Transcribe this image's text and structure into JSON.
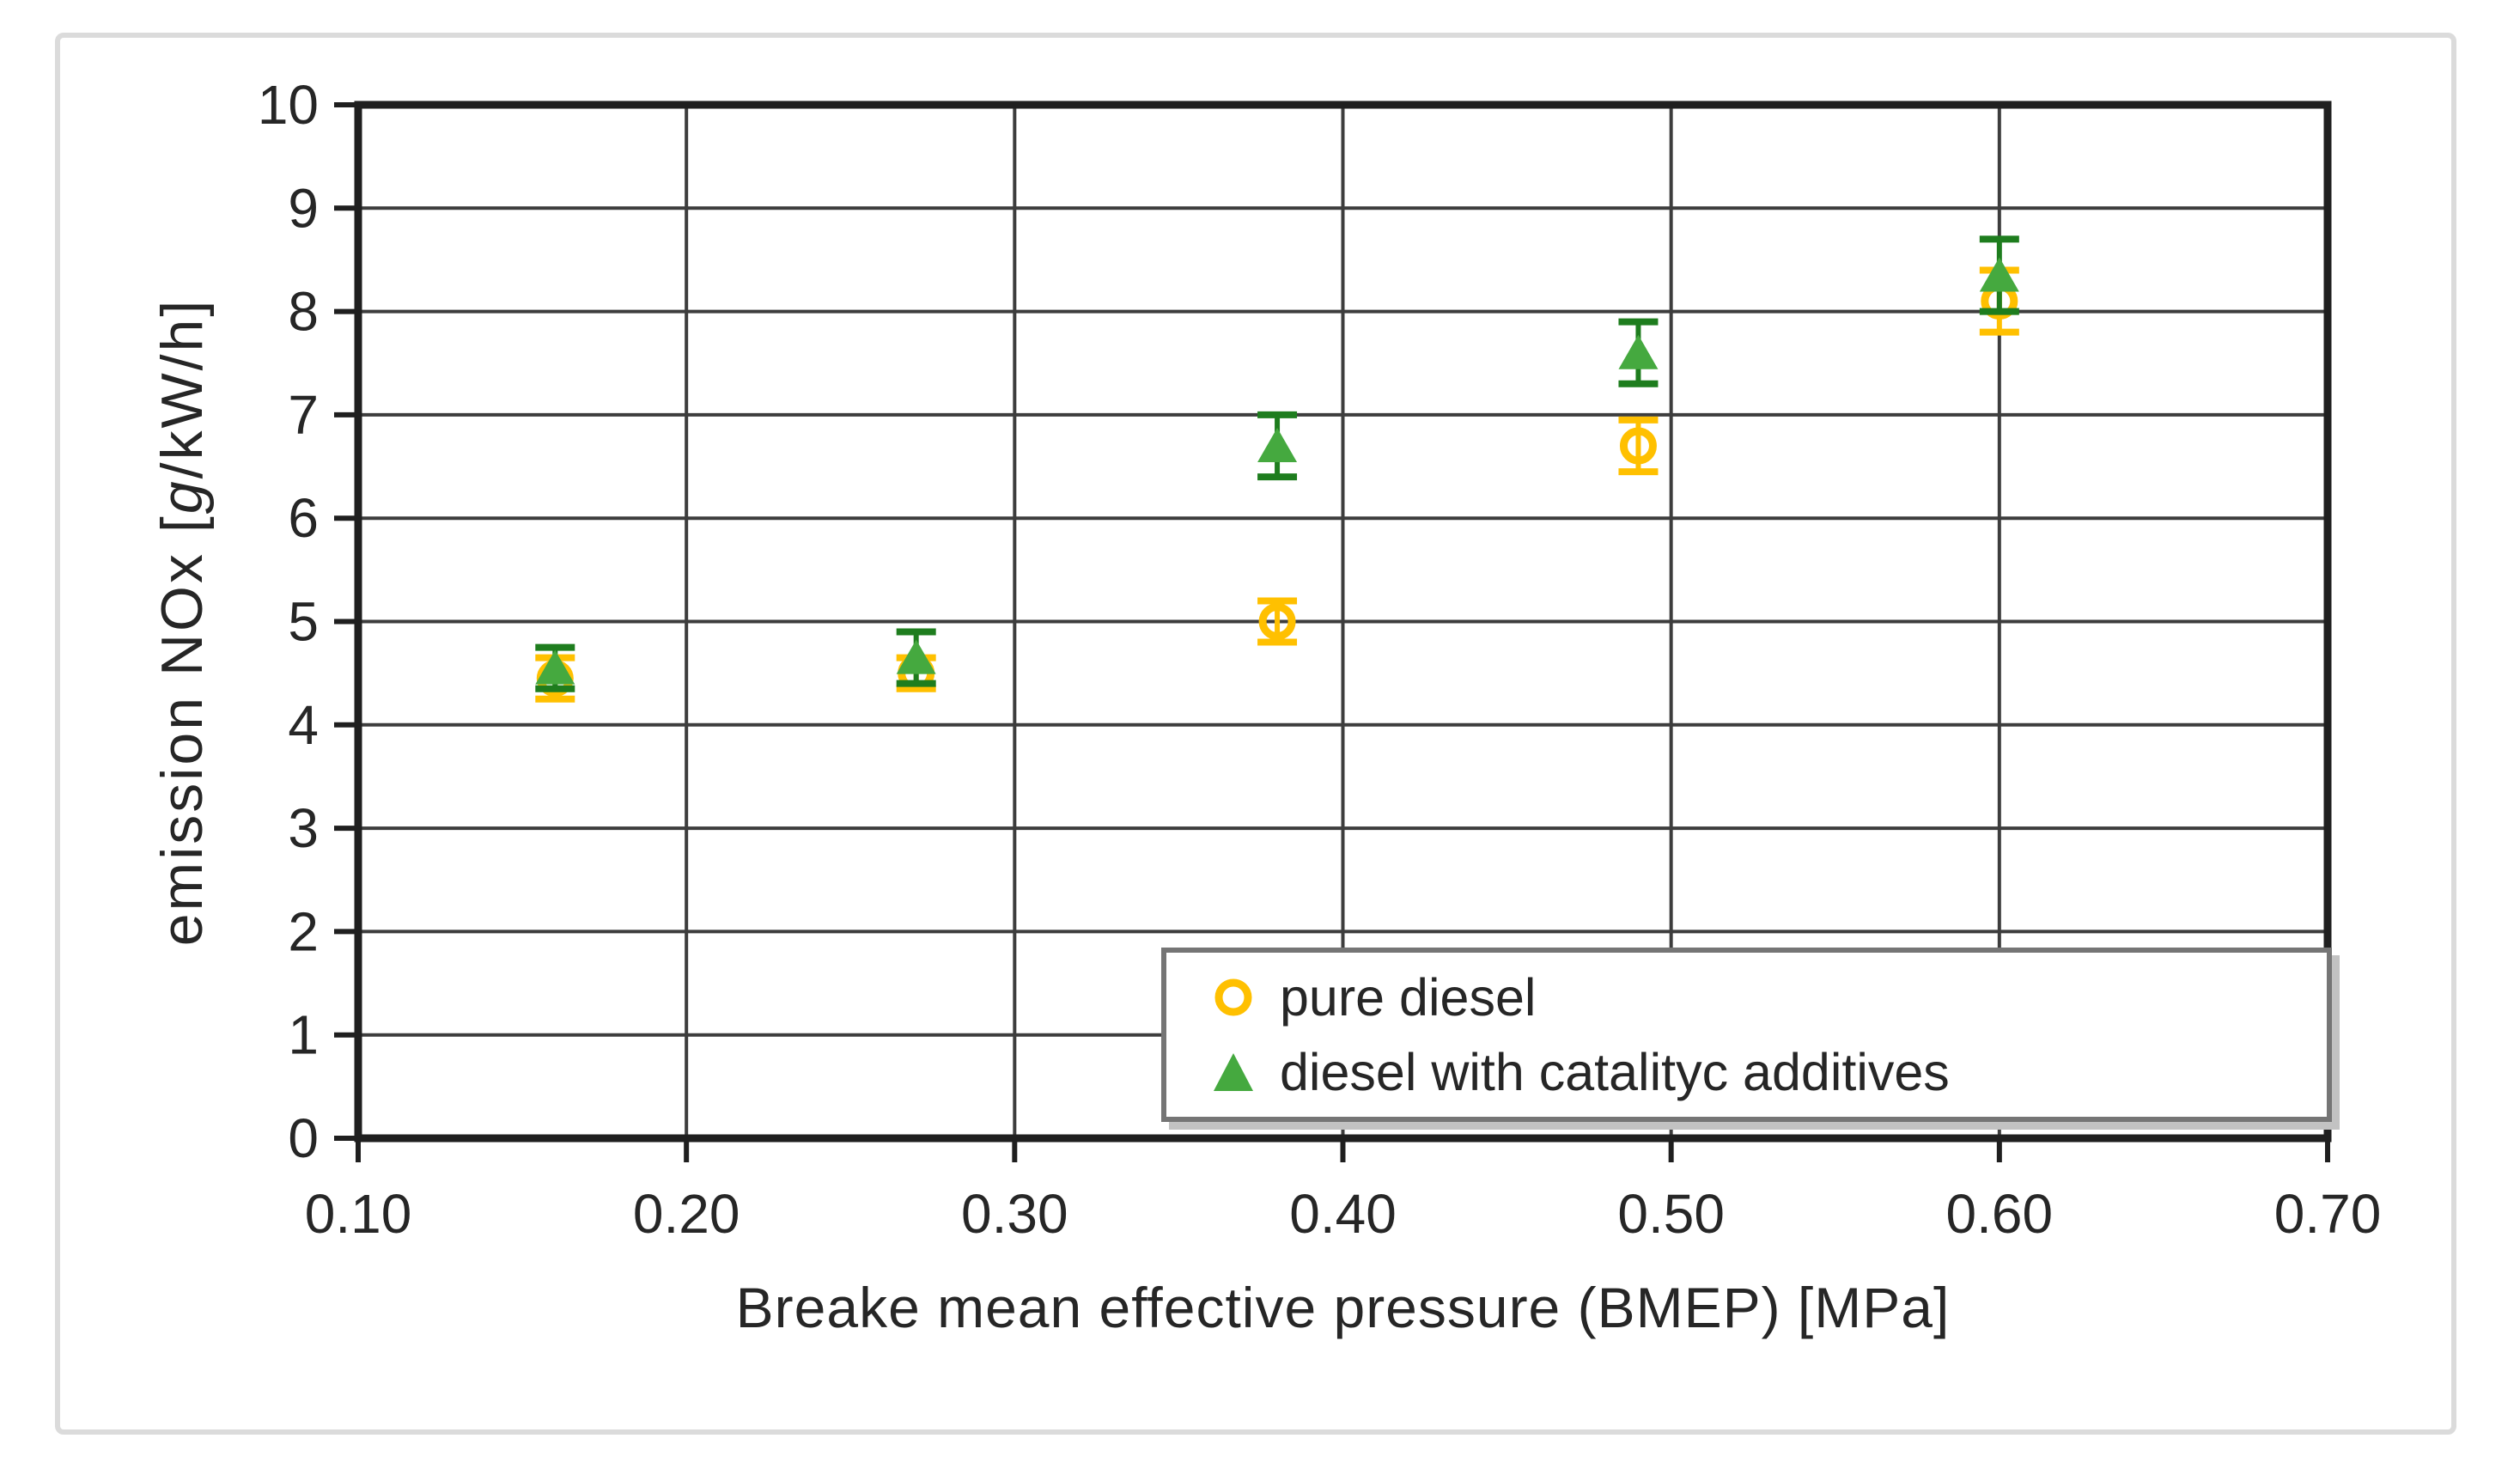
{
  "chart_data": {
    "type": "scatter",
    "title": "",
    "xlabel": "Breake mean effective pressure (BMEP) [MPa]",
    "ylabel": "emission NOx [g/kW/h]",
    "ylabel_parts": {
      "prefix": "emission NOx [",
      "italic": "g",
      "suffix": "/kW/h]"
    },
    "xlim": [
      0.1,
      0.7
    ],
    "ylim": [
      0,
      10
    ],
    "x_ticks": [
      0.1,
      0.2,
      0.3,
      0.4,
      0.5,
      0.6,
      0.7
    ],
    "x_tick_labels": [
      "0.10",
      "0.20",
      "0.30",
      "0.40",
      "0.50",
      "0.60",
      "0.70"
    ],
    "y_ticks": [
      0,
      1,
      2,
      3,
      4,
      5,
      6,
      7,
      8,
      9,
      10
    ],
    "y_tick_labels": [
      "0",
      "1",
      "2",
      "3",
      "4",
      "5",
      "6",
      "7",
      "8",
      "9",
      "10"
    ],
    "grid": "both",
    "legend_position": "inside-bottom-right",
    "colors": {
      "pure_diesel": "#FFC000",
      "additives": "#45A93F",
      "additives_error": "#1E7D1E",
      "grid_line": "#3D3D3D",
      "axis_border": "#1F1F1F",
      "text": "#262626",
      "legend_border": "#757575",
      "figure_frame": "#DBDBDB"
    },
    "series": [
      {
        "name": "pure diesel",
        "marker": "open-circle",
        "color": "#FFC000",
        "x": [
          0.16,
          0.27,
          0.38,
          0.49,
          0.6
        ],
        "y": [
          4.45,
          4.5,
          5.0,
          6.7,
          8.1
        ],
        "y_err": [
          0.2,
          0.15,
          0.2,
          0.25,
          0.3
        ]
      },
      {
        "name": "diesel with catalityc additives",
        "marker": "filled-triangle",
        "color": "#45A93F",
        "error_color": "#1E7D1E",
        "x": [
          0.16,
          0.27,
          0.38,
          0.49,
          0.6
        ],
        "y": [
          4.55,
          4.65,
          6.7,
          7.6,
          8.35
        ],
        "y_err": [
          0.2,
          0.25,
          0.3,
          0.3,
          0.35
        ]
      }
    ]
  }
}
